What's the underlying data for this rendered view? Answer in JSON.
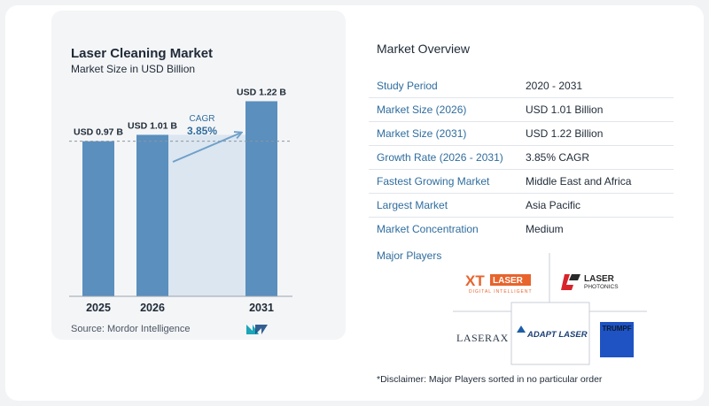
{
  "chart_data": {
    "type": "bar",
    "title": "Laser Cleaning Market",
    "subtitle": "Market Size in USD Billion",
    "categories": [
      "2025",
      "2026",
      "2031"
    ],
    "values": [
      0.97,
      1.01,
      1.22
    ],
    "data_labels": [
      "USD 0.97 B",
      "USD 1.01 B",
      "USD 1.22 B"
    ],
    "cagr_label": "CAGR",
    "cagr_value": "3.85%",
    "bar_color": "#5a8fbe",
    "ylim": [
      0,
      1.3
    ],
    "grid": false
  },
  "source": "Source:  Mordor Intelligence",
  "overview": {
    "title": "Market Overview",
    "rows": [
      {
        "key": "Study Period",
        "value": "2020 - 2031"
      },
      {
        "key": "Market Size (2026)",
        "value": "USD 1.01 Billion"
      },
      {
        "key": "Market Size (2031)",
        "value": "USD 1.22 Billion"
      },
      {
        "key": "Growth Rate (2026 - 2031)",
        "value": "3.85% CAGR"
      },
      {
        "key": "Fastest Growing Market",
        "value": "Middle East and Africa"
      },
      {
        "key": "Largest Market",
        "value": "Asia Pacific"
      },
      {
        "key": "Market Concentration",
        "value": "Medium"
      }
    ]
  },
  "players": {
    "title": "Major Players",
    "logos": {
      "xt_main": "XT",
      "xt_laser": "LASER",
      "xt_tagline": "DIGITAL INTELLIGENT",
      "laser_photonics_top": "LASER",
      "laser_photonics_bottom": "PHOTONICS",
      "laserax": "LASERAX",
      "adapt": "ADAPT LASER",
      "trumpf": "TRUMPF"
    }
  },
  "disclaimer": "*Disclaimer: Major Players sorted in no particular order"
}
